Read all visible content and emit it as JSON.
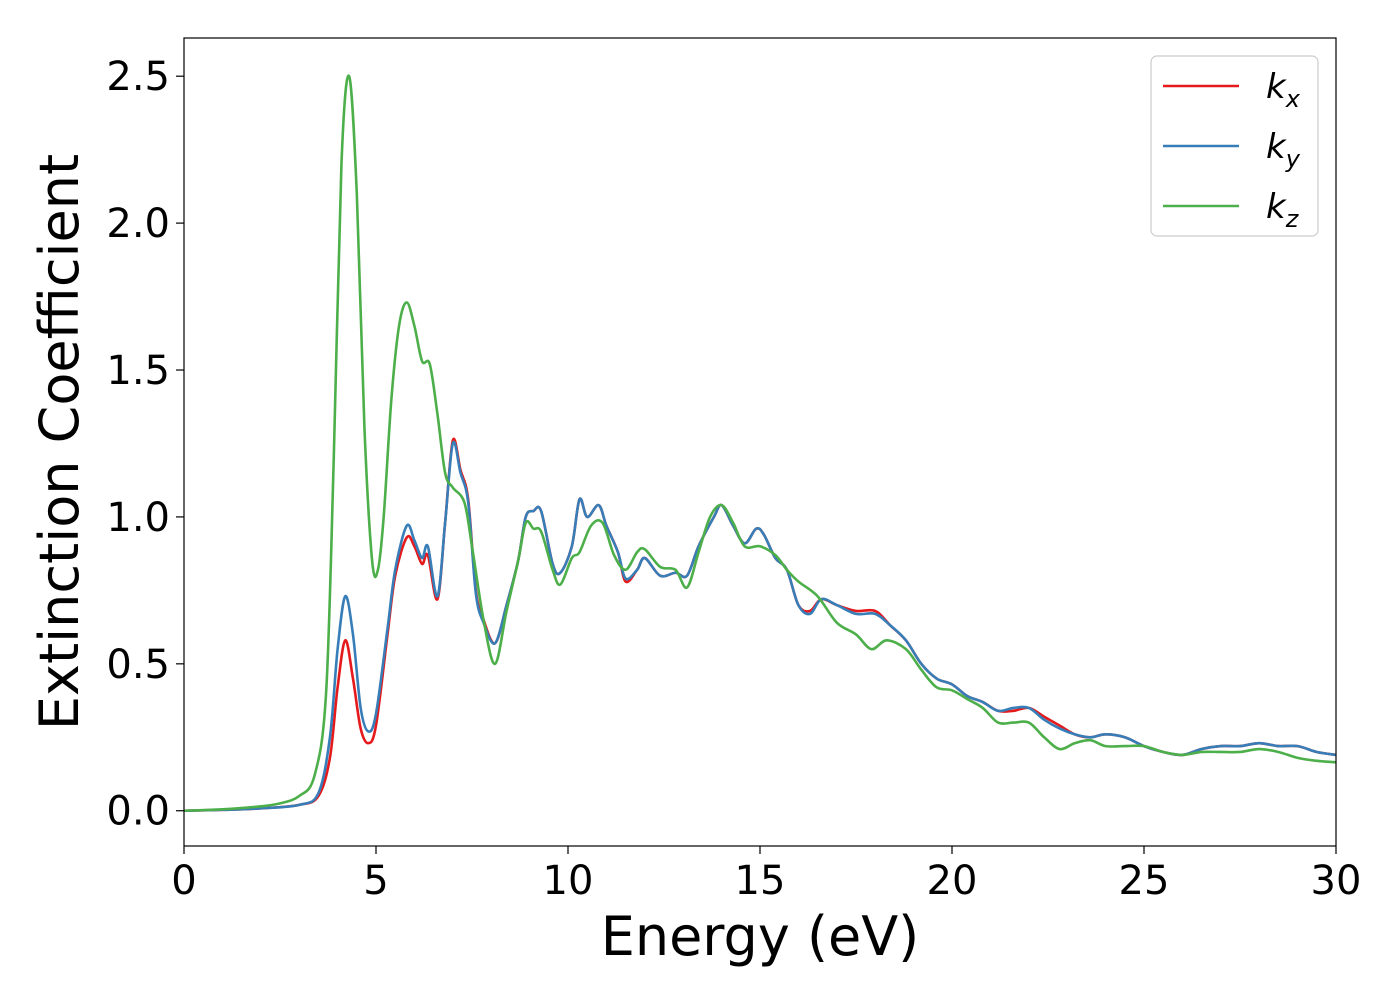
{
  "chart_data": {
    "type": "line",
    "xlabel": "Energy (eV)",
    "ylabel": "Extinction Coefficient",
    "xlim": [
      0,
      30
    ],
    "ylim": [
      -0.12,
      2.63
    ],
    "xticks": [
      0,
      5,
      10,
      15,
      20,
      25,
      30
    ],
    "xtick_labels": [
      "0",
      "5",
      "10",
      "15",
      "20",
      "25",
      "30"
    ],
    "yticks": [
      0.0,
      0.5,
      1.0,
      1.5,
      2.0,
      2.5
    ],
    "ytick_labels": [
      "0.0",
      "0.5",
      "1.0",
      "1.5",
      "2.0",
      "2.5"
    ],
    "grid": false,
    "legend_position": "top-right",
    "series": [
      {
        "name": "k_x",
        "label_main": "k",
        "label_sub": "x",
        "color": "#e41a1c",
        "points": [
          [
            0,
            0
          ],
          [
            1,
            0.003
          ],
          [
            2,
            0.008
          ],
          [
            3,
            0.02
          ],
          [
            3.5,
            0.05
          ],
          [
            3.8,
            0.18
          ],
          [
            4.0,
            0.42
          ],
          [
            4.2,
            0.58
          ],
          [
            4.4,
            0.45
          ],
          [
            4.6,
            0.28
          ],
          [
            4.8,
            0.23
          ],
          [
            5.0,
            0.29
          ],
          [
            5.3,
            0.6
          ],
          [
            5.5,
            0.8
          ],
          [
            5.8,
            0.93
          ],
          [
            6.0,
            0.9
          ],
          [
            6.2,
            0.84
          ],
          [
            6.35,
            0.87
          ],
          [
            6.6,
            0.72
          ],
          [
            6.8,
            0.98
          ],
          [
            7.0,
            1.26
          ],
          [
            7.2,
            1.16
          ],
          [
            7.4,
            1.06
          ],
          [
            7.6,
            0.75
          ],
          [
            7.8,
            0.65
          ],
          [
            8.1,
            0.57
          ],
          [
            8.4,
            0.7
          ],
          [
            8.7,
            0.85
          ],
          [
            8.9,
            1.0
          ],
          [
            9.1,
            1.02
          ],
          [
            9.3,
            1.02
          ],
          [
            9.6,
            0.84
          ],
          [
            9.8,
            0.81
          ],
          [
            10.1,
            0.9
          ],
          [
            10.3,
            1.06
          ],
          [
            10.5,
            1.0
          ],
          [
            10.8,
            1.04
          ],
          [
            11.0,
            0.97
          ],
          [
            11.3,
            0.88
          ],
          [
            11.5,
            0.78
          ],
          [
            11.8,
            0.82
          ],
          [
            12.0,
            0.86
          ],
          [
            12.4,
            0.8
          ],
          [
            12.8,
            0.81
          ],
          [
            13.1,
            0.8
          ],
          [
            13.4,
            0.9
          ],
          [
            13.8,
            1.0
          ],
          [
            14.0,
            1.04
          ],
          [
            14.3,
            0.97
          ],
          [
            14.6,
            0.91
          ],
          [
            14.9,
            0.96
          ],
          [
            15.1,
            0.94
          ],
          [
            15.4,
            0.86
          ],
          [
            15.7,
            0.82
          ],
          [
            16.0,
            0.7
          ],
          [
            16.3,
            0.68
          ],
          [
            16.6,
            0.72
          ],
          [
            17.0,
            0.7
          ],
          [
            17.5,
            0.68
          ],
          [
            18.0,
            0.68
          ],
          [
            18.4,
            0.63
          ],
          [
            18.8,
            0.58
          ],
          [
            19.2,
            0.5
          ],
          [
            19.6,
            0.45
          ],
          [
            20.0,
            0.43
          ],
          [
            20.4,
            0.39
          ],
          [
            20.8,
            0.37
          ],
          [
            21.2,
            0.34
          ],
          [
            21.6,
            0.34
          ],
          [
            22.0,
            0.35
          ],
          [
            22.4,
            0.32
          ],
          [
            22.8,
            0.29
          ],
          [
            23.2,
            0.26
          ],
          [
            23.6,
            0.25
          ],
          [
            24.0,
            0.26
          ],
          [
            24.5,
            0.25
          ],
          [
            25.0,
            0.22
          ],
          [
            25.5,
            0.2
          ],
          [
            26.0,
            0.19
          ],
          [
            26.5,
            0.21
          ],
          [
            27.0,
            0.22
          ],
          [
            27.5,
            0.22
          ],
          [
            28.0,
            0.23
          ],
          [
            28.5,
            0.22
          ],
          [
            29.0,
            0.22
          ],
          [
            29.5,
            0.2
          ],
          [
            30.0,
            0.19
          ]
        ]
      },
      {
        "name": "k_y",
        "label_main": "k",
        "label_sub": "y",
        "color": "#377eb8",
        "points": [
          [
            0,
            0
          ],
          [
            1,
            0.003
          ],
          [
            2,
            0.008
          ],
          [
            3,
            0.02
          ],
          [
            3.5,
            0.06
          ],
          [
            3.8,
            0.25
          ],
          [
            4.0,
            0.55
          ],
          [
            4.2,
            0.73
          ],
          [
            4.4,
            0.6
          ],
          [
            4.6,
            0.35
          ],
          [
            4.8,
            0.27
          ],
          [
            5.0,
            0.33
          ],
          [
            5.3,
            0.62
          ],
          [
            5.5,
            0.82
          ],
          [
            5.8,
            0.97
          ],
          [
            6.0,
            0.92
          ],
          [
            6.2,
            0.86
          ],
          [
            6.35,
            0.9
          ],
          [
            6.6,
            0.73
          ],
          [
            6.8,
            0.98
          ],
          [
            7.0,
            1.25
          ],
          [
            7.2,
            1.15
          ],
          [
            7.4,
            1.05
          ],
          [
            7.6,
            0.74
          ],
          [
            7.8,
            0.64
          ],
          [
            8.1,
            0.57
          ],
          [
            8.4,
            0.7
          ],
          [
            8.7,
            0.85
          ],
          [
            8.9,
            1.0
          ],
          [
            9.1,
            1.02
          ],
          [
            9.3,
            1.02
          ],
          [
            9.6,
            0.84
          ],
          [
            9.8,
            0.81
          ],
          [
            10.1,
            0.9
          ],
          [
            10.3,
            1.06
          ],
          [
            10.5,
            1.0
          ],
          [
            10.8,
            1.04
          ],
          [
            11.0,
            0.97
          ],
          [
            11.3,
            0.88
          ],
          [
            11.5,
            0.79
          ],
          [
            11.8,
            0.82
          ],
          [
            12.0,
            0.86
          ],
          [
            12.4,
            0.8
          ],
          [
            12.8,
            0.81
          ],
          [
            13.1,
            0.8
          ],
          [
            13.4,
            0.9
          ],
          [
            13.8,
            1.0
          ],
          [
            14.0,
            1.04
          ],
          [
            14.3,
            0.97
          ],
          [
            14.6,
            0.91
          ],
          [
            14.9,
            0.96
          ],
          [
            15.1,
            0.94
          ],
          [
            15.4,
            0.86
          ],
          [
            15.7,
            0.82
          ],
          [
            16.0,
            0.7
          ],
          [
            16.3,
            0.67
          ],
          [
            16.6,
            0.72
          ],
          [
            17.0,
            0.7
          ],
          [
            17.5,
            0.67
          ],
          [
            18.0,
            0.67
          ],
          [
            18.4,
            0.63
          ],
          [
            18.8,
            0.58
          ],
          [
            19.2,
            0.5
          ],
          [
            19.6,
            0.45
          ],
          [
            20.0,
            0.43
          ],
          [
            20.4,
            0.39
          ],
          [
            20.8,
            0.37
          ],
          [
            21.2,
            0.34
          ],
          [
            21.6,
            0.35
          ],
          [
            22.0,
            0.35
          ],
          [
            22.4,
            0.31
          ],
          [
            22.8,
            0.28
          ],
          [
            23.2,
            0.26
          ],
          [
            23.6,
            0.25
          ],
          [
            24.0,
            0.26
          ],
          [
            24.5,
            0.25
          ],
          [
            25.0,
            0.22
          ],
          [
            25.5,
            0.2
          ],
          [
            26.0,
            0.19
          ],
          [
            26.5,
            0.21
          ],
          [
            27.0,
            0.22
          ],
          [
            27.5,
            0.22
          ],
          [
            28.0,
            0.23
          ],
          [
            28.5,
            0.22
          ],
          [
            29.0,
            0.22
          ],
          [
            29.5,
            0.2
          ],
          [
            30.0,
            0.19
          ]
        ]
      },
      {
        "name": "k_z",
        "label_main": "k",
        "label_sub": "z",
        "color": "#4daf4a",
        "points": [
          [
            0,
            0
          ],
          [
            1,
            0.005
          ],
          [
            2,
            0.015
          ],
          [
            2.5,
            0.025
          ],
          [
            3.0,
            0.05
          ],
          [
            3.4,
            0.12
          ],
          [
            3.7,
            0.4
          ],
          [
            3.9,
            1.2
          ],
          [
            4.1,
            2.2
          ],
          [
            4.3,
            2.5
          ],
          [
            4.5,
            2.1
          ],
          [
            4.7,
            1.3
          ],
          [
            4.9,
            0.85
          ],
          [
            5.05,
            0.82
          ],
          [
            5.2,
            1.0
          ],
          [
            5.4,
            1.4
          ],
          [
            5.6,
            1.65
          ],
          [
            5.8,
            1.73
          ],
          [
            6.0,
            1.65
          ],
          [
            6.2,
            1.53
          ],
          [
            6.4,
            1.52
          ],
          [
            6.6,
            1.35
          ],
          [
            6.8,
            1.15
          ],
          [
            7.0,
            1.1
          ],
          [
            7.3,
            1.05
          ],
          [
            7.5,
            0.9
          ],
          [
            7.8,
            0.65
          ],
          [
            8.1,
            0.5
          ],
          [
            8.4,
            0.68
          ],
          [
            8.7,
            0.85
          ],
          [
            8.9,
            0.98
          ],
          [
            9.1,
            0.96
          ],
          [
            9.3,
            0.95
          ],
          [
            9.6,
            0.82
          ],
          [
            9.8,
            0.77
          ],
          [
            10.1,
            0.86
          ],
          [
            10.3,
            0.88
          ],
          [
            10.6,
            0.97
          ],
          [
            10.9,
            0.98
          ],
          [
            11.2,
            0.87
          ],
          [
            11.5,
            0.82
          ],
          [
            11.8,
            0.88
          ],
          [
            12.0,
            0.89
          ],
          [
            12.4,
            0.83
          ],
          [
            12.8,
            0.82
          ],
          [
            13.1,
            0.76
          ],
          [
            13.4,
            0.88
          ],
          [
            13.7,
            1.0
          ],
          [
            14.0,
            1.04
          ],
          [
            14.3,
            0.98
          ],
          [
            14.6,
            0.9
          ],
          [
            15.0,
            0.9
          ],
          [
            15.4,
            0.87
          ],
          [
            15.7,
            0.82
          ],
          [
            16.0,
            0.78
          ],
          [
            16.5,
            0.73
          ],
          [
            17.0,
            0.64
          ],
          [
            17.5,
            0.6
          ],
          [
            17.9,
            0.55
          ],
          [
            18.3,
            0.58
          ],
          [
            18.8,
            0.55
          ],
          [
            19.2,
            0.48
          ],
          [
            19.6,
            0.42
          ],
          [
            20.0,
            0.41
          ],
          [
            20.4,
            0.38
          ],
          [
            20.8,
            0.35
          ],
          [
            21.2,
            0.3
          ],
          [
            21.6,
            0.3
          ],
          [
            22.0,
            0.3
          ],
          [
            22.4,
            0.25
          ],
          [
            22.8,
            0.21
          ],
          [
            23.2,
            0.23
          ],
          [
            23.6,
            0.24
          ],
          [
            24.0,
            0.22
          ],
          [
            24.5,
            0.22
          ],
          [
            25.0,
            0.22
          ],
          [
            25.5,
            0.2
          ],
          [
            26.0,
            0.19
          ],
          [
            26.5,
            0.2
          ],
          [
            27.0,
            0.2
          ],
          [
            27.5,
            0.2
          ],
          [
            28.0,
            0.21
          ],
          [
            28.5,
            0.2
          ],
          [
            29.0,
            0.18
          ],
          [
            29.5,
            0.17
          ],
          [
            30.0,
            0.165
          ]
        ]
      }
    ]
  }
}
